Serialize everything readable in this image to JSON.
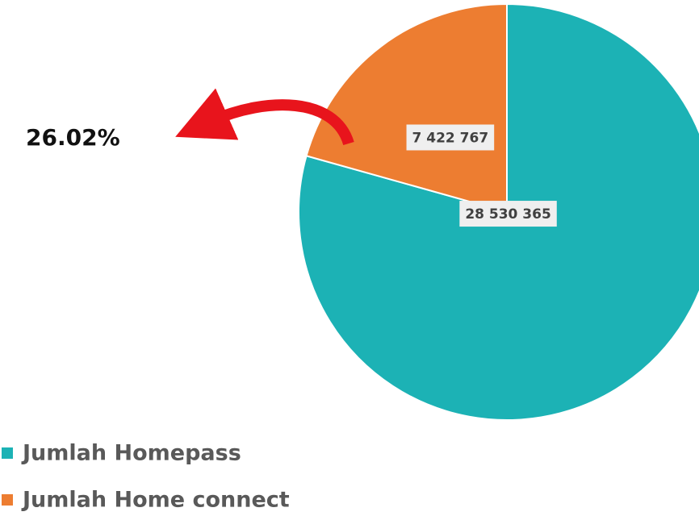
{
  "chart_data": {
    "type": "pie",
    "series": [
      {
        "name": "Jumlah Homepass",
        "color": "#1cb2b5",
        "values": [
          28530365
        ],
        "value_labels": [
          "28 530 365"
        ]
      },
      {
        "name": "Jumlah Home connect",
        "color": "#ed7d31",
        "values": [
          7422767
        ],
        "value_labels": [
          "7 422 767"
        ]
      }
    ],
    "annotation": "26.02%"
  }
}
